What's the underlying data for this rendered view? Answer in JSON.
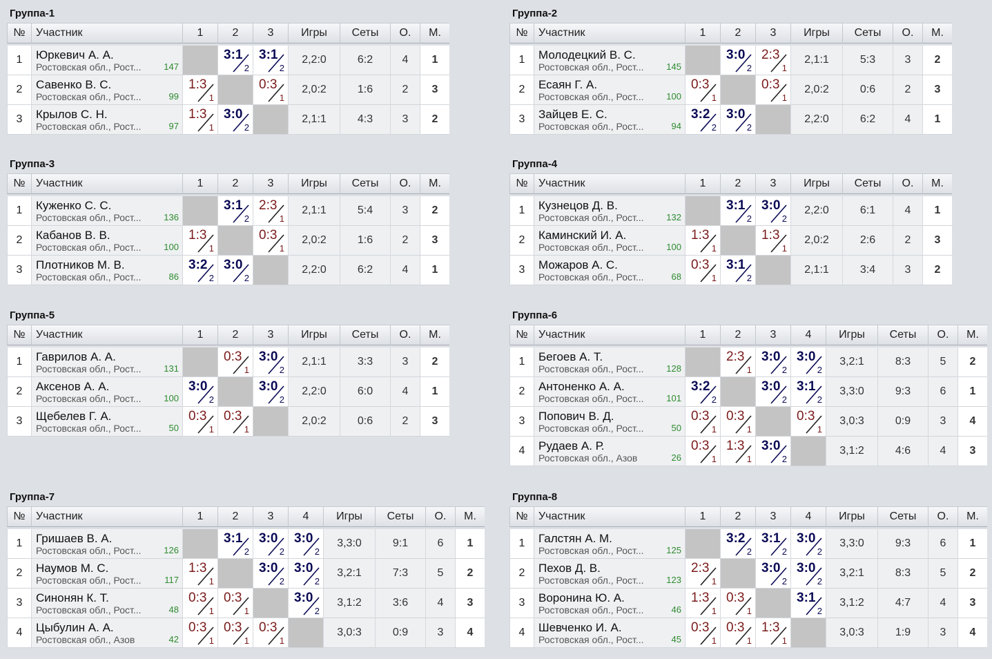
{
  "headers": {
    "num": "№",
    "participant": "Участник",
    "games": "Игры",
    "sets": "Сеты",
    "points": "О.",
    "place": "М."
  },
  "groups": [
    {
      "title": "Группа-1",
      "players": [
        {
          "num": "1",
          "name": "Юркевич А. А.",
          "region": "Ростовская обл., Рост...",
          "rating": "147",
          "results": [
            null,
            {
              "score": "3:1",
              "sub": "2",
              "win": true
            },
            {
              "score": "3:1",
              "sub": "2",
              "win": true
            }
          ],
          "games": "2,2:0",
          "sets": "6:2",
          "points": "4",
          "place": "1"
        },
        {
          "num": "2",
          "name": "Савенко В. С.",
          "region": "Ростовская обл., Рост...",
          "rating": "99",
          "results": [
            {
              "score": "1:3",
              "sub": "1",
              "win": false
            },
            null,
            {
              "score": "0:3",
              "sub": "1",
              "win": false
            }
          ],
          "games": "2,0:2",
          "sets": "1:6",
          "points": "2",
          "place": "3"
        },
        {
          "num": "3",
          "name": "Крылов С. Н.",
          "region": "Ростовская обл., Рост...",
          "rating": "97",
          "results": [
            {
              "score": "1:3",
              "sub": "1",
              "win": false
            },
            {
              "score": "3:0",
              "sub": "2",
              "win": true
            },
            null
          ],
          "games": "2,1:1",
          "sets": "4:3",
          "points": "3",
          "place": "2"
        }
      ]
    },
    {
      "title": "Группа-2",
      "players": [
        {
          "num": "1",
          "name": "Молодецкий В. С.",
          "region": "Ростовская обл., Рост...",
          "rating": "145",
          "results": [
            null,
            {
              "score": "3:0",
              "sub": "2",
              "win": true
            },
            {
              "score": "2:3",
              "sub": "1",
              "win": false
            }
          ],
          "games": "2,1:1",
          "sets": "5:3",
          "points": "3",
          "place": "2"
        },
        {
          "num": "2",
          "name": "Есаян Г. А.",
          "region": "Ростовская обл., Рост...",
          "rating": "100",
          "results": [
            {
              "score": "0:3",
              "sub": "1",
              "win": false
            },
            null,
            {
              "score": "0:3",
              "sub": "1",
              "win": false
            }
          ],
          "games": "2,0:2",
          "sets": "0:6",
          "points": "2",
          "place": "3"
        },
        {
          "num": "3",
          "name": "Зайцев Е. С.",
          "region": "Ростовская обл., Рост...",
          "rating": "94",
          "results": [
            {
              "score": "3:2",
              "sub": "2",
              "win": true
            },
            {
              "score": "3:0",
              "sub": "2",
              "win": true
            },
            null
          ],
          "games": "2,2:0",
          "sets": "6:2",
          "points": "4",
          "place": "1"
        }
      ]
    },
    {
      "title": "Группа-3",
      "players": [
        {
          "num": "1",
          "name": "Куженко С. С.",
          "region": "Ростовская обл., Рост...",
          "rating": "136",
          "results": [
            null,
            {
              "score": "3:1",
              "sub": "2",
              "win": true
            },
            {
              "score": "2:3",
              "sub": "1",
              "win": false
            }
          ],
          "games": "2,1:1",
          "sets": "5:4",
          "points": "3",
          "place": "2"
        },
        {
          "num": "2",
          "name": "Кабанов В. В.",
          "region": "Ростовская обл., Рост...",
          "rating": "100",
          "results": [
            {
              "score": "1:3",
              "sub": "1",
              "win": false
            },
            null,
            {
              "score": "0:3",
              "sub": "1",
              "win": false
            }
          ],
          "games": "2,0:2",
          "sets": "1:6",
          "points": "2",
          "place": "3"
        },
        {
          "num": "3",
          "name": "Плотников М. В.",
          "region": "Ростовская обл., Рост...",
          "rating": "86",
          "results": [
            {
              "score": "3:2",
              "sub": "2",
              "win": true
            },
            {
              "score": "3:0",
              "sub": "2",
              "win": true
            },
            null
          ],
          "games": "2,2:0",
          "sets": "6:2",
          "points": "4",
          "place": "1"
        }
      ]
    },
    {
      "title": "Группа-4",
      "players": [
        {
          "num": "1",
          "name": "Кузнецов Д. В.",
          "region": "Ростовская обл., Рост...",
          "rating": "132",
          "results": [
            null,
            {
              "score": "3:1",
              "sub": "2",
              "win": true
            },
            {
              "score": "3:0",
              "sub": "2",
              "win": true
            }
          ],
          "games": "2,2:0",
          "sets": "6:1",
          "points": "4",
          "place": "1"
        },
        {
          "num": "2",
          "name": "Каминский И. А.",
          "region": "Ростовская обл., Рост...",
          "rating": "100",
          "results": [
            {
              "score": "1:3",
              "sub": "1",
              "win": false
            },
            null,
            {
              "score": "1:3",
              "sub": "1",
              "win": false
            }
          ],
          "games": "2,0:2",
          "sets": "2:6",
          "points": "2",
          "place": "3"
        },
        {
          "num": "3",
          "name": "Можаров А. С.",
          "region": "Ростовская обл., Рост...",
          "rating": "68",
          "results": [
            {
              "score": "0:3",
              "sub": "1",
              "win": false
            },
            {
              "score": "3:1",
              "sub": "2",
              "win": true
            },
            null
          ],
          "games": "2,1:1",
          "sets": "3:4",
          "points": "3",
          "place": "2"
        }
      ]
    },
    {
      "title": "Группа-5",
      "players": [
        {
          "num": "1",
          "name": "Гаврилов А. А.",
          "region": "Ростовская обл., Рост...",
          "rating": "131",
          "results": [
            null,
            {
              "score": "0:3",
              "sub": "1",
              "win": false
            },
            {
              "score": "3:0",
              "sub": "2",
              "win": true
            }
          ],
          "games": "2,1:1",
          "sets": "3:3",
          "points": "3",
          "place": "2"
        },
        {
          "num": "2",
          "name": "Аксенов А. А.",
          "region": "Ростовская обл., Рост...",
          "rating": "100",
          "results": [
            {
              "score": "3:0",
              "sub": "2",
              "win": true
            },
            null,
            {
              "score": "3:0",
              "sub": "2",
              "win": true
            }
          ],
          "games": "2,2:0",
          "sets": "6:0",
          "points": "4",
          "place": "1"
        },
        {
          "num": "3",
          "name": "Щебелев Г. А.",
          "region": "Ростовская обл., Рост...",
          "rating": "50",
          "results": [
            {
              "score": "0:3",
              "sub": "1",
              "win": false
            },
            {
              "score": "0:3",
              "sub": "1",
              "win": false
            },
            null
          ],
          "games": "2,0:2",
          "sets": "0:6",
          "points": "2",
          "place": "3"
        }
      ]
    },
    {
      "title": "Группа-6",
      "players": [
        {
          "num": "1",
          "name": "Бегоев А. Т.",
          "region": "Ростовская обл., Рост...",
          "rating": "128",
          "results": [
            null,
            {
              "score": "2:3",
              "sub": "1",
              "win": false
            },
            {
              "score": "3:0",
              "sub": "2",
              "win": true
            },
            {
              "score": "3:0",
              "sub": "2",
              "win": true
            }
          ],
          "games": "3,2:1",
          "sets": "8:3",
          "points": "5",
          "place": "2"
        },
        {
          "num": "2",
          "name": "Антоненко А. А.",
          "region": "Ростовская обл., Рост...",
          "rating": "101",
          "results": [
            {
              "score": "3:2",
              "sub": "2",
              "win": true
            },
            null,
            {
              "score": "3:0",
              "sub": "2",
              "win": true
            },
            {
              "score": "3:1",
              "sub": "2",
              "win": true
            }
          ],
          "games": "3,3:0",
          "sets": "9:3",
          "points": "6",
          "place": "1"
        },
        {
          "num": "3",
          "name": "Попович В. Д.",
          "region": "Ростовская обл., Рост...",
          "rating": "50",
          "results": [
            {
              "score": "0:3",
              "sub": "1",
              "win": false
            },
            {
              "score": "0:3",
              "sub": "1",
              "win": false
            },
            null,
            {
              "score": "0:3",
              "sub": "1",
              "win": false
            }
          ],
          "games": "3,0:3",
          "sets": "0:9",
          "points": "3",
          "place": "4"
        },
        {
          "num": "4",
          "name": "Рудаев А. Р.",
          "region": "Ростовская обл., Азов",
          "rating": "26",
          "results": [
            {
              "score": "0:3",
              "sub": "1",
              "win": false
            },
            {
              "score": "1:3",
              "sub": "1",
              "win": false
            },
            {
              "score": "3:0",
              "sub": "2",
              "win": true
            },
            null
          ],
          "games": "3,1:2",
          "sets": "4:6",
          "points": "4",
          "place": "3"
        }
      ]
    },
    {
      "title": "Группа-7",
      "players": [
        {
          "num": "1",
          "name": "Гришаев В. А.",
          "region": "Ростовская обл., Рост...",
          "rating": "126",
          "results": [
            null,
            {
              "score": "3:1",
              "sub": "2",
              "win": true
            },
            {
              "score": "3:0",
              "sub": "2",
              "win": true
            },
            {
              "score": "3:0",
              "sub": "2",
              "win": true
            }
          ],
          "games": "3,3:0",
          "sets": "9:1",
          "points": "6",
          "place": "1"
        },
        {
          "num": "2",
          "name": "Наумов М. С.",
          "region": "Ростовская обл., Рост...",
          "rating": "117",
          "results": [
            {
              "score": "1:3",
              "sub": "1",
              "win": false
            },
            null,
            {
              "score": "3:0",
              "sub": "2",
              "win": true
            },
            {
              "score": "3:0",
              "sub": "2",
              "win": true
            }
          ],
          "games": "3,2:1",
          "sets": "7:3",
          "points": "5",
          "place": "2"
        },
        {
          "num": "3",
          "name": "Синонян К. Т.",
          "region": "Ростовская обл., Рост...",
          "rating": "48",
          "results": [
            {
              "score": "0:3",
              "sub": "1",
              "win": false
            },
            {
              "score": "0:3",
              "sub": "1",
              "win": false
            },
            null,
            {
              "score": "3:0",
              "sub": "2",
              "win": true
            }
          ],
          "games": "3,1:2",
          "sets": "3:6",
          "points": "4",
          "place": "3"
        },
        {
          "num": "4",
          "name": "Цыбулин А. А.",
          "region": "Ростовская обл., Азов",
          "rating": "42",
          "results": [
            {
              "score": "0:3",
              "sub": "1",
              "win": false
            },
            {
              "score": "0:3",
              "sub": "1",
              "win": false
            },
            {
              "score": "0:3",
              "sub": "1",
              "win": false
            },
            null
          ],
          "games": "3,0:3",
          "sets": "0:9",
          "points": "3",
          "place": "4"
        }
      ]
    },
    {
      "title": "Группа-8",
      "players": [
        {
          "num": "1",
          "name": "Галстян А. М.",
          "region": "Ростовская обл., Рост...",
          "rating": "125",
          "results": [
            null,
            {
              "score": "3:2",
              "sub": "2",
              "win": true
            },
            {
              "score": "3:1",
              "sub": "2",
              "win": true
            },
            {
              "score": "3:0",
              "sub": "2",
              "win": true
            }
          ],
          "games": "3,3:0",
          "sets": "9:3",
          "points": "6",
          "place": "1"
        },
        {
          "num": "2",
          "name": "Пехов Д. В.",
          "region": "Ростовская обл., Рост...",
          "rating": "123",
          "results": [
            {
              "score": "2:3",
              "sub": "1",
              "win": false
            },
            null,
            {
              "score": "3:0",
              "sub": "2",
              "win": true
            },
            {
              "score": "3:0",
              "sub": "2",
              "win": true
            }
          ],
          "games": "3,2:1",
          "sets": "8:3",
          "points": "5",
          "place": "2"
        },
        {
          "num": "3",
          "name": "Воронина Ю. А.",
          "region": "Ростовская обл., Рост...",
          "rating": "46",
          "results": [
            {
              "score": "1:3",
              "sub": "1",
              "win": false
            },
            {
              "score": "0:3",
              "sub": "1",
              "win": false
            },
            null,
            {
              "score": "3:1",
              "sub": "2",
              "win": true
            }
          ],
          "games": "3,1:2",
          "sets": "4:7",
          "points": "4",
          "place": "3"
        },
        {
          "num": "4",
          "name": "Шевченко И. А.",
          "region": "Ростовская обл., Рост...",
          "rating": "45",
          "results": [
            {
              "score": "0:3",
              "sub": "1",
              "win": false
            },
            {
              "score": "0:3",
              "sub": "1",
              "win": false
            },
            {
              "score": "1:3",
              "sub": "1",
              "win": false
            },
            null
          ],
          "games": "3,0:3",
          "sets": "1:9",
          "points": "3",
          "place": "4"
        }
      ]
    }
  ]
}
